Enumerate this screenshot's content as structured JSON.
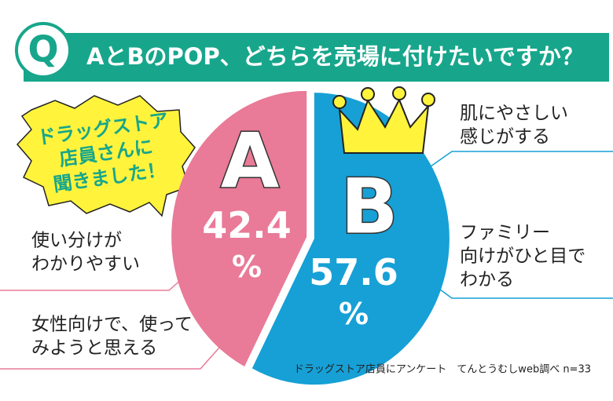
{
  "chart_data": {
    "type": "pie",
    "title": "AとBのPOP、どちらを売場に付けたいですか？",
    "title_badge": "Q",
    "callout": [
      "ドラッグストア",
      "店員さんに",
      "聞きました！"
    ],
    "categories": [
      "A",
      "B"
    ],
    "values": [
      42.4,
      57.6
    ],
    "value_labels": [
      "42.4%",
      "57.6%"
    ],
    "colors": [
      "#e97a98",
      "#16a0d6"
    ],
    "annotations": [
      [
        "肌にやさしい",
        "感じがする"
      ],
      [
        "ファミリー",
        "向けがひと目で",
        "わかる"
      ],
      [
        "使い分けが",
        "わかりやすい"
      ],
      [
        "女性向けで、使って",
        "みようと思える"
      ]
    ],
    "source": "ドラッグストア店員にアンケート　てんとうむしweb調べ n=33"
  }
}
